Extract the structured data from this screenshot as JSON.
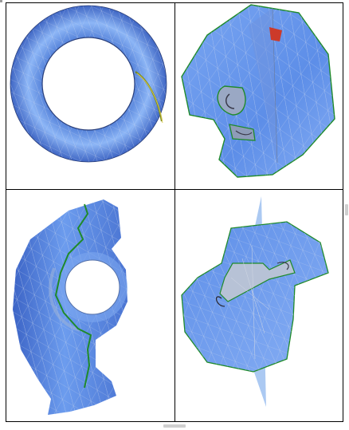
{
  "viewer": {
    "panels": [
      {
        "id": "torus-top-view",
        "view": "top"
      },
      {
        "id": "torus-cut-open",
        "view": "cut"
      },
      {
        "id": "torus-side-view",
        "view": "side"
      },
      {
        "id": "torus-plane-section",
        "view": "section"
      }
    ],
    "colors": {
      "mesh_fill": "#6f9fef",
      "mesh_light": "#a8c8f8",
      "mesh_dark": "#3a64c0",
      "wire": "#c8d4e8",
      "boundary": "#1f8a2a",
      "cut_line": "#7a8a1e",
      "highlight": "#cc3a2a",
      "plane": "#8fb7ee"
    }
  }
}
